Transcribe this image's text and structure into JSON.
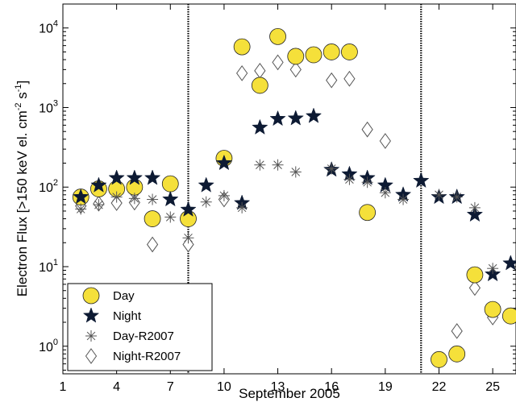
{
  "chart_data": {
    "type": "scatter",
    "title": "",
    "xlabel": "September 2005",
    "ylabel": "Electron Flux [>150 keV el. cm",
    "ylabel_sup1": "-2",
    "ylabel_mid": " s",
    "ylabel_sup2": "-1",
    "ylabel_end": "]",
    "xlim": [
      1,
      26.3
    ],
    "ylim": [
      0.45,
      20000
    ],
    "yscale": "log",
    "xticks": [
      1,
      4,
      7,
      10,
      13,
      16,
      19,
      22,
      25
    ],
    "yticks": [
      {
        "value": 1,
        "base": "10",
        "exp": "0"
      },
      {
        "value": 10,
        "base": "10",
        "exp": "1"
      },
      {
        "value": 100,
        "base": "10",
        "exp": "2"
      },
      {
        "value": 1000,
        "base": "10",
        "exp": "3"
      },
      {
        "value": 10000,
        "base": "10",
        "exp": "4"
      }
    ],
    "vlines": [
      8,
      21
    ],
    "legend_position": "bottom-left",
    "series": [
      {
        "name": "Day",
        "marker": "circle",
        "color": "#f5e03a",
        "points": [
          [
            2,
            75
          ],
          [
            3,
            95
          ],
          [
            4,
            95
          ],
          [
            5,
            100
          ],
          [
            6,
            40
          ],
          [
            7,
            110
          ],
          [
            8,
            40
          ],
          [
            10,
            230
          ],
          [
            11,
            5800
          ],
          [
            12,
            1900
          ],
          [
            13,
            7800
          ],
          [
            14,
            4400
          ],
          [
            15,
            4600
          ],
          [
            16,
            5000
          ],
          [
            17,
            5000
          ],
          [
            18,
            48
          ],
          [
            22,
            0.68
          ],
          [
            23,
            0.8
          ],
          [
            24,
            7.9
          ],
          [
            25,
            2.9
          ],
          [
            26,
            2.4
          ]
        ]
      },
      {
        "name": "Night",
        "marker": "star",
        "color": "#0d1a33",
        "points": [
          [
            2,
            75
          ],
          [
            3,
            105
          ],
          [
            4,
            130
          ],
          [
            5,
            130
          ],
          [
            6,
            130
          ],
          [
            7,
            70
          ],
          [
            8,
            52
          ],
          [
            9,
            105
          ],
          [
            10,
            200
          ],
          [
            11,
            63
          ],
          [
            12,
            560
          ],
          [
            13,
            720
          ],
          [
            14,
            730
          ],
          [
            15,
            780
          ],
          [
            16,
            165
          ],
          [
            17,
            145
          ],
          [
            18,
            130
          ],
          [
            19,
            105
          ],
          [
            20,
            80
          ],
          [
            21,
            120
          ],
          [
            22,
            75
          ],
          [
            23,
            75
          ],
          [
            24,
            45
          ],
          [
            25,
            8
          ],
          [
            26,
            11
          ]
        ]
      },
      {
        "name": "Day-R2007",
        "marker": "asterisk",
        "color": "#555555",
        "points": [
          [
            2,
            53
          ],
          [
            3,
            60
          ],
          [
            4,
            75
          ],
          [
            5,
            72
          ],
          [
            6,
            70
          ],
          [
            7,
            42
          ],
          [
            8,
            23
          ],
          [
            9,
            65
          ],
          [
            10,
            78
          ],
          [
            11,
            55
          ],
          [
            12,
            190
          ],
          [
            13,
            190
          ],
          [
            14,
            155
          ],
          [
            16,
            170
          ],
          [
            17,
            125
          ],
          [
            18,
            115
          ],
          [
            19,
            85
          ],
          [
            20,
            70
          ],
          [
            22,
            80
          ],
          [
            23,
            75
          ],
          [
            24,
            55
          ],
          [
            25,
            9.5
          ]
        ]
      },
      {
        "name": "Night-R2007",
        "marker": "diamond",
        "color": "#555555",
        "points": [
          [
            2,
            58
          ],
          [
            3,
            62
          ],
          [
            4,
            63
          ],
          [
            5,
            64
          ],
          [
            6,
            19
          ],
          [
            8,
            19
          ],
          [
            10,
            70
          ],
          [
            11,
            2700
          ],
          [
            12,
            2900
          ],
          [
            13,
            3700
          ],
          [
            14,
            3000
          ],
          [
            16,
            2200
          ],
          [
            17,
            2300
          ],
          [
            18,
            530
          ],
          [
            19,
            380
          ],
          [
            22,
            0.65
          ],
          [
            23,
            1.55
          ],
          [
            24,
            5.4
          ],
          [
            25,
            2.3
          ]
        ]
      }
    ]
  }
}
